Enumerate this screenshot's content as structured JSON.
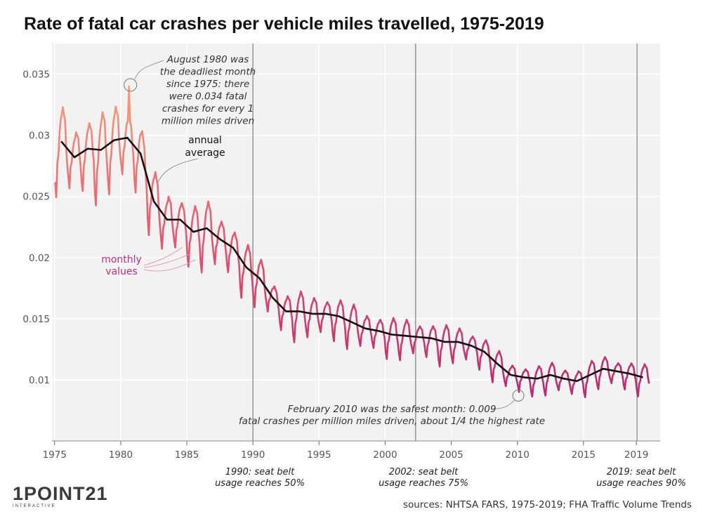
{
  "chart_data": {
    "type": "line",
    "title": "Rate of fatal car crashes per vehicle miles travelled, 1975-2019",
    "xlabel": "",
    "ylabel": "",
    "xlim": [
      1974.8,
      2020.8
    ],
    "ylim": [
      0.005,
      0.0375
    ],
    "x_ticks": [
      1975,
      1980,
      1985,
      1990,
      1995,
      2000,
      2005,
      2010,
      2015,
      2019
    ],
    "y_ticks": [
      0.01,
      0.015,
      0.02,
      0.025,
      0.03,
      0.035
    ],
    "y_tick_labels": [
      "0.01",
      "0.015",
      "0.02",
      "0.025",
      "0.03",
      "0.035"
    ],
    "series": [
      {
        "name": "annual average",
        "x": [
          1975.5,
          1976.5,
          1977.5,
          1978.5,
          1979.5,
          1980.5,
          1981.5,
          1982.5,
          1983.5,
          1984.5,
          1985.5,
          1986.5,
          1987.5,
          1988.5,
          1989.5,
          1990.5,
          1991.5,
          1992.5,
          1993.5,
          1994.5,
          1995.5,
          1996.5,
          1997.5,
          1998.5,
          1999.5,
          2000.5,
          2001.5,
          2002.5,
          2003.5,
          2004.5,
          2005.5,
          2006.5,
          2007.5,
          2008.5,
          2009.5,
          2010.5,
          2011.5,
          2012.5,
          2013.5,
          2014.5,
          2015.5,
          2016.5,
          2017.5,
          2018.5,
          2019.5
        ],
        "values": [
          0.0295,
          0.0282,
          0.0289,
          0.0288,
          0.0296,
          0.0298,
          0.0285,
          0.0246,
          0.0231,
          0.0231,
          0.0221,
          0.0224,
          0.0215,
          0.0208,
          0.0192,
          0.0183,
          0.0167,
          0.0156,
          0.0156,
          0.0154,
          0.0154,
          0.0152,
          0.0147,
          0.0142,
          0.014,
          0.0137,
          0.0136,
          0.0135,
          0.0134,
          0.0131,
          0.0131,
          0.0128,
          0.0123,
          0.0113,
          0.0104,
          0.0102,
          0.0101,
          0.0104,
          0.0101,
          0.0099,
          0.0104,
          0.0109,
          0.0107,
          0.0105,
          0.0102
        ]
      },
      {
        "name": "monthly values",
        "generated_from": "annual average with seasonal pattern",
        "peak": {
          "date": "August 1980",
          "value": 0.034
        },
        "low": {
          "date": "February 2010",
          "value": 0.009
        }
      }
    ],
    "vertical_lines": [
      1990,
      2002.3,
      2019.05
    ],
    "annotations": {
      "peak_note": [
        "August 1980 was",
        "the deadliest month",
        "since 1975: there",
        "were 0.034 fatal",
        "crashes for every 1",
        "million miles driven"
      ],
      "annual_label": [
        "annual",
        "average"
      ],
      "monthly_label": [
        "monthly",
        "values"
      ],
      "low_note": [
        "February 2010 was the safest month: 0.009",
        "fatal crashes per million miles driven, about 1/4 the highest rate"
      ]
    }
  },
  "milestones": [
    {
      "line1": "1990: seat belt",
      "line2": "usage reaches 50%"
    },
    {
      "line1": "2002: seat belt",
      "line2": "usage reaches 75%"
    },
    {
      "line1": "2019: seat belt",
      "line2": "usage reaches 90%"
    }
  ],
  "logo": {
    "main": "1POINT21",
    "sub": "INTERACTIVE"
  },
  "source": "sources: NHTSA FARS, 1975-2019; FHA Traffic Volume Trends",
  "colors": {
    "background": "#f2f2f2",
    "annual_line": "#111111",
    "monthly_high": "#f4a77e",
    "monthly_mid": "#e8556e",
    "monthly_low": "#b8286e",
    "monthly_label": "#c0307a",
    "vline": "#9a9a9a",
    "grid": "#ffffff"
  }
}
